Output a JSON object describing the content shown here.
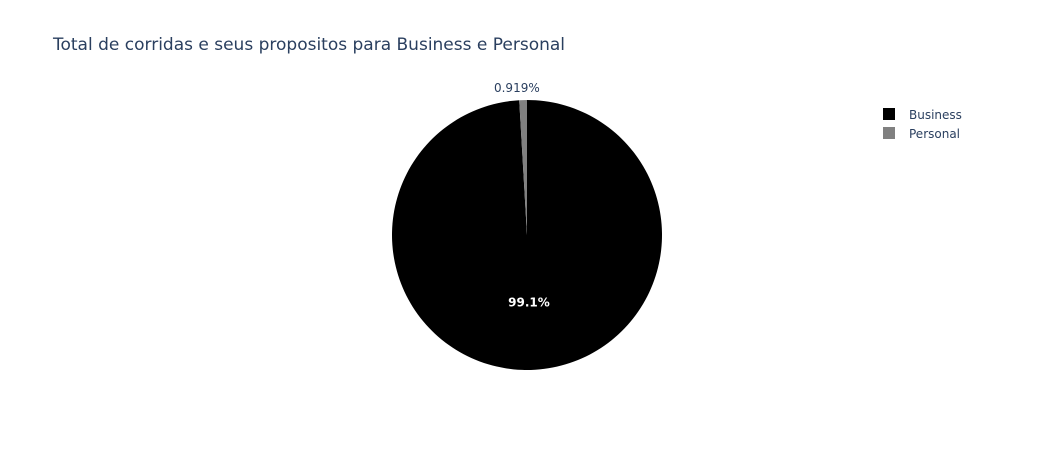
{
  "chart_data": {
    "type": "pie",
    "title": "Total de corridas e seus propositos para Business e Personal",
    "slices": [
      {
        "name": "Business",
        "value": 99.081,
        "label": "99.1%",
        "color": "#000000"
      },
      {
        "name": "Personal",
        "value": 0.919,
        "label": "0.919%",
        "color": "#808080"
      }
    ],
    "legend_position": "top-right"
  }
}
